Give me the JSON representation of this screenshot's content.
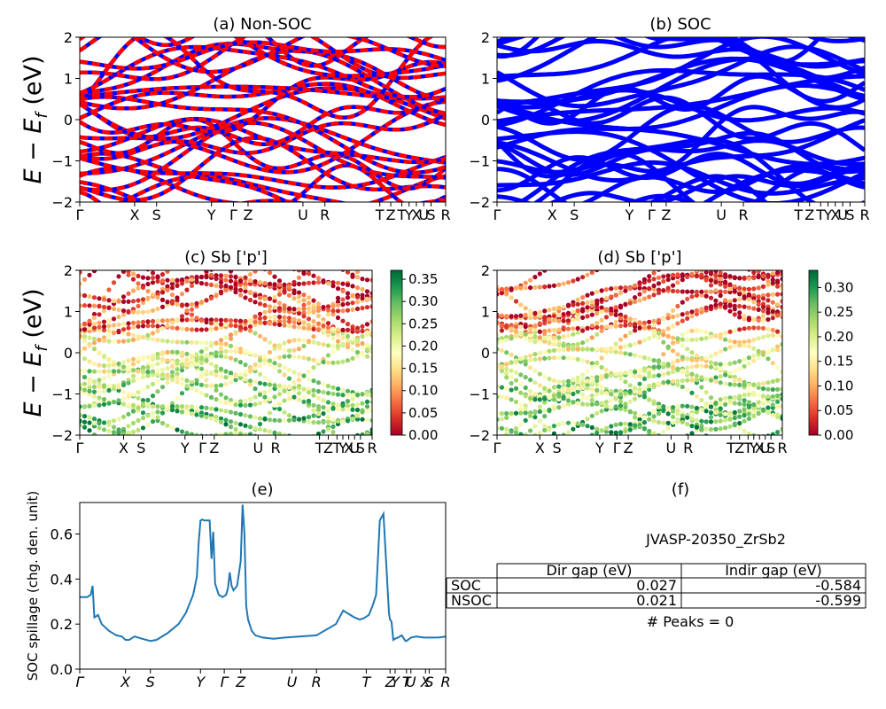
{
  "figure": {
    "ylabel_main": "E − E",
    "ylabel_sub": "f",
    "ylabel_unit": " (eV)"
  },
  "colors": {
    "nonsoc_a": "#ff0000",
    "nonsoc_b": "#0000ff",
    "soc": "#0000ff",
    "spillage": "#1f77b4",
    "colormap": [
      "#a50026",
      "#d73027",
      "#f46d43",
      "#fdae61",
      "#fee08b",
      "#ffffbf",
      "#d9ef8b",
      "#a6d96a",
      "#66bd63",
      "#1a9850",
      "#006837"
    ]
  },
  "chart_data": [
    {
      "id": "a",
      "type": "line",
      "title": "(a) Non-SOC",
      "ylim": [
        -2,
        2
      ],
      "yticks": [
        "2",
        "1",
        "0",
        "−1",
        "−2"
      ],
      "kpath_labels": [
        "Γ",
        "X",
        "S",
        "Y",
        "Γ",
        "Z",
        "U",
        "R",
        "T",
        "Z",
        "T",
        "Y",
        "X",
        "U",
        "S",
        "R"
      ],
      "kpath_pos": [
        0,
        0.15,
        0.21,
        0.36,
        0.42,
        0.46,
        0.61,
        0.67,
        0.82,
        0.85,
        0.88,
        0.9,
        0.92,
        0.94,
        0.96,
        1.0
      ],
      "series_style": "dashed red over solid blue (spin up / spin down)"
    },
    {
      "id": "b",
      "type": "line",
      "title": "(b) SOC",
      "ylim": [
        -2,
        2
      ],
      "yticks": [
        "2",
        "1",
        "0",
        "−1",
        "−2"
      ],
      "kpath_labels": [
        "Γ",
        "X",
        "S",
        "Y",
        "Γ",
        "Z",
        "U",
        "R",
        "T",
        "Z",
        "T",
        "Y",
        "X",
        "U",
        "S",
        "R"
      ],
      "kpath_pos": [
        0,
        0.15,
        0.21,
        0.36,
        0.42,
        0.46,
        0.61,
        0.67,
        0.82,
        0.85,
        0.88,
        0.9,
        0.92,
        0.94,
        0.96,
        1.0
      ]
    },
    {
      "id": "c",
      "type": "scatter",
      "title": "(c)  Sb ['p']",
      "ylim": [
        -2,
        2
      ],
      "yticks": [
        "2",
        "1",
        "0",
        "−1",
        "−2"
      ],
      "kpath_labels": [
        "Γ",
        "X",
        "S",
        "Y",
        "Γ",
        "Z",
        "U",
        "R",
        "T",
        "Z",
        "T",
        "Y",
        "X",
        "U",
        "S",
        "R"
      ],
      "colorbar_range": [
        0,
        0.37
      ],
      "colorbar_ticks": [
        "0.35",
        "0.30",
        "0.25",
        "0.20",
        "0.15",
        "0.10",
        "0.05",
        "0.00"
      ],
      "colorbar_tick_values": [
        0.35,
        0.3,
        0.25,
        0.2,
        0.15,
        0.1,
        0.05,
        0.0
      ]
    },
    {
      "id": "d",
      "type": "scatter",
      "title": "(d) Sb ['p']",
      "ylim": [
        -2,
        2
      ],
      "yticks": [
        "2",
        "1",
        "0",
        "−1",
        "−2"
      ],
      "kpath_labels": [
        "Γ",
        "X",
        "S",
        "Y",
        "Γ",
        "Z",
        "U",
        "R",
        "T",
        "Z",
        "T",
        "Y",
        "X",
        "U",
        "S",
        "R"
      ],
      "colorbar_range": [
        0,
        0.335
      ],
      "colorbar_ticks": [
        "0.30",
        "0.25",
        "0.20",
        "0.15",
        "0.10",
        "0.05",
        "0.00"
      ],
      "colorbar_tick_values": [
        0.3,
        0.25,
        0.2,
        0.15,
        0.1,
        0.05,
        0.0
      ]
    },
    {
      "id": "e",
      "type": "line",
      "title": "(e)",
      "ylabel": "SOC spillage (chg. den. unit)",
      "ylim": [
        0,
        0.74
      ],
      "yticks": [
        "0.6",
        "0.4",
        "0.2",
        "0.0"
      ],
      "ytick_values": [
        0.6,
        0.4,
        0.2,
        0.0
      ],
      "xlim": [
        0,
        1
      ],
      "kpath_labels": [
        "Γ",
        "X",
        "S",
        "Y",
        "Γ",
        "Z",
        "U",
        "R",
        "T",
        "Z",
        "Y",
        "T",
        "U",
        "X",
        "S",
        "R"
      ],
      "kpath_pos": [
        0,
        0.125,
        0.193,
        0.33,
        0.395,
        0.44,
        0.58,
        0.647,
        0.783,
        0.848,
        0.862,
        0.893,
        0.905,
        0.945,
        0.955,
        1.0
      ],
      "x": [
        0,
        0.02,
        0.03,
        0.035,
        0.04,
        0.05,
        0.06,
        0.08,
        0.1,
        0.115,
        0.125,
        0.135,
        0.15,
        0.17,
        0.193,
        0.21,
        0.24,
        0.27,
        0.29,
        0.31,
        0.32,
        0.325,
        0.33,
        0.335,
        0.34,
        0.355,
        0.36,
        0.365,
        0.37,
        0.38,
        0.39,
        0.4,
        0.405,
        0.41,
        0.415,
        0.42,
        0.43,
        0.44,
        0.445,
        0.45,
        0.455,
        0.46,
        0.47,
        0.48,
        0.5,
        0.53,
        0.56,
        0.6,
        0.647,
        0.7,
        0.72,
        0.75,
        0.765,
        0.775,
        0.79,
        0.8,
        0.81,
        0.82,
        0.83,
        0.845,
        0.848,
        0.852,
        0.857,
        0.862,
        0.87,
        0.88,
        0.89,
        0.893,
        0.905,
        0.92,
        0.94,
        0.95,
        0.96,
        0.98,
        1.0
      ],
      "y": [
        0.32,
        0.32,
        0.33,
        0.37,
        0.23,
        0.24,
        0.2,
        0.17,
        0.15,
        0.145,
        0.13,
        0.13,
        0.145,
        0.135,
        0.125,
        0.13,
        0.16,
        0.2,
        0.25,
        0.33,
        0.41,
        0.56,
        0.66,
        0.665,
        0.66,
        0.66,
        0.49,
        0.61,
        0.38,
        0.33,
        0.32,
        0.33,
        0.36,
        0.43,
        0.37,
        0.35,
        0.37,
        0.48,
        0.73,
        0.6,
        0.28,
        0.22,
        0.17,
        0.15,
        0.14,
        0.135,
        0.14,
        0.145,
        0.15,
        0.2,
        0.26,
        0.23,
        0.22,
        0.225,
        0.24,
        0.28,
        0.33,
        0.66,
        0.69,
        0.25,
        0.22,
        0.21,
        0.13,
        0.135,
        0.14,
        0.15,
        0.125,
        0.125,
        0.14,
        0.145,
        0.14,
        0.14,
        0.14,
        0.14,
        0.145
      ]
    }
  ],
  "panel_f": {
    "title": "(f)",
    "material": "JVASP-20350_ZrSb2",
    "table": {
      "headers": [
        "",
        "Dir gap (eV)",
        "Indir gap (eV)"
      ],
      "rows": [
        [
          "SOC",
          "0.027",
          "-0.584"
        ],
        [
          "NSOC",
          "0.021",
          "-0.599"
        ]
      ]
    },
    "peaks": "# Peaks = 0"
  }
}
